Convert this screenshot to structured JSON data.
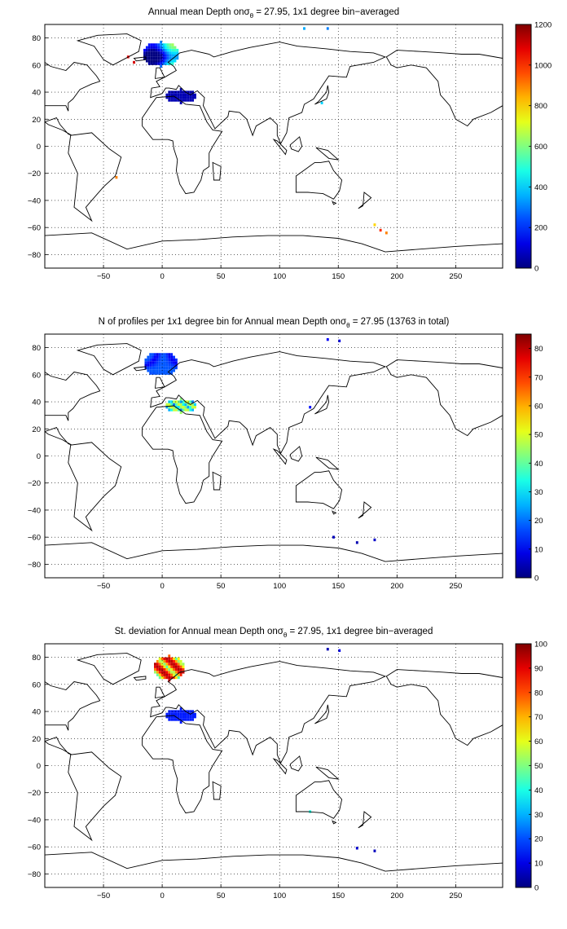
{
  "figure": {
    "panels": [
      {
        "title_prefix": "Annual mean Depth on",
        "title_symbol": "σ",
        "title_sub": "θ",
        "title_suffix": " = 27.95, 1x1 degree bin−averaged",
        "colorbar": {
          "min": 0,
          "max": 1200,
          "ticks": [
            0,
            200,
            400,
            600,
            800,
            1000,
            1200
          ]
        }
      },
      {
        "title_prefix": "N of profiles per 1x1 degree bin for Annual mean Depth on",
        "title_symbol": "σ",
        "title_sub": "θ",
        "title_suffix": " = 27.95 (13763 in total)",
        "colorbar": {
          "min": 0,
          "max": 85,
          "ticks": [
            0,
            10,
            20,
            30,
            40,
            50,
            60,
            70,
            80
          ]
        }
      },
      {
        "title_prefix": "St. deviation for Annual mean Depth on",
        "title_symbol": "σ",
        "title_sub": "θ",
        "title_suffix": " = 27.95, 1x1 degree bin−averaged",
        "colorbar": {
          "min": 0,
          "max": 100,
          "ticks": [
            0,
            10,
            20,
            30,
            40,
            50,
            60,
            70,
            80,
            90,
            100
          ]
        }
      }
    ],
    "axes": {
      "xlim": [
        -100,
        290
      ],
      "ylim": [
        -90,
        90
      ],
      "xticks": [
        -50,
        0,
        50,
        100,
        150,
        200,
        250
      ],
      "yticks": [
        -80,
        -60,
        -40,
        -20,
        0,
        20,
        40,
        60,
        80
      ],
      "grid": true
    },
    "colormap": "jet"
  }
}
